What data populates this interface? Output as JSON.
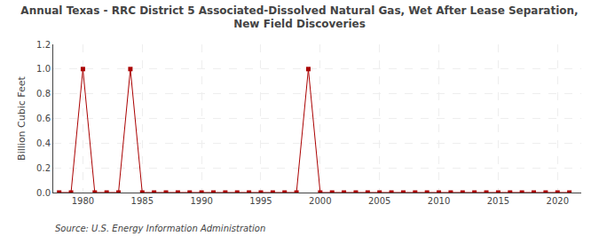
{
  "chart_data": {
    "type": "line",
    "title": "Annual Texas - RRC District 5 Associated-Dissolved Natural Gas, Wet After Lease Separation,\nNew Field Discoveries",
    "ylabel": "Billion Cubic Feet",
    "annotations": [
      "Source: U.S. Energy Information Administration"
    ],
    "x": [
      1978,
      1979,
      1980,
      1981,
      1982,
      1983,
      1984,
      1985,
      1986,
      1987,
      1988,
      1989,
      1990,
      1991,
      1992,
      1993,
      1994,
      1995,
      1996,
      1997,
      1998,
      1999,
      2000,
      2001,
      2002,
      2003,
      2004,
      2005,
      2006,
      2007,
      2008,
      2009,
      2010,
      2011,
      2012,
      2013,
      2014,
      2015,
      2016,
      2017,
      2018,
      2019,
      2020,
      2021
    ],
    "values": [
      0,
      0,
      1.0,
      0,
      0,
      0,
      1.0,
      0,
      0,
      0,
      0,
      0,
      0,
      0,
      0,
      0,
      0,
      0,
      0,
      0,
      0,
      1.0,
      0,
      0,
      0,
      0,
      0,
      0,
      0,
      0,
      0,
      0,
      0,
      0,
      0,
      0,
      0,
      0,
      0,
      0,
      0,
      0,
      0,
      0
    ],
    "color": "#aa0000",
    "marker": "square",
    "line_style": "solid",
    "xlim": [
      1977.5,
      2022
    ],
    "ylim": [
      0,
      1.2
    ],
    "xticks": [
      1980,
      1985,
      1990,
      1995,
      2000,
      2005,
      2010,
      2015,
      2020
    ],
    "yticks": [
      {
        "value": 0.0,
        "label": "0.0"
      },
      0.2,
      0.4,
      0.6,
      0.8,
      {
        "value": 1.0,
        "label": "1.0"
      },
      1.2
    ],
    "grid": true
  }
}
